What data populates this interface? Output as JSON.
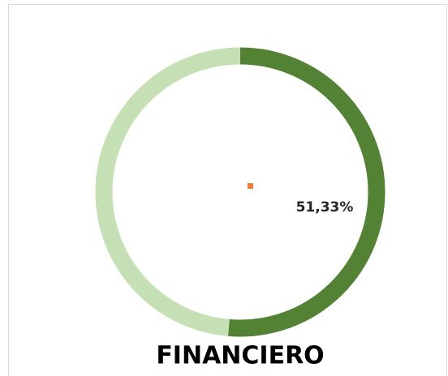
{
  "chart_data": {
    "type": "donut",
    "title": "FINANCIERO",
    "values": [
      51.33,
      48.67
    ],
    "value_labels": [
      "51,33%",
      null
    ],
    "colors": [
      "#548235",
      "#c5e0b4"
    ]
  }
}
